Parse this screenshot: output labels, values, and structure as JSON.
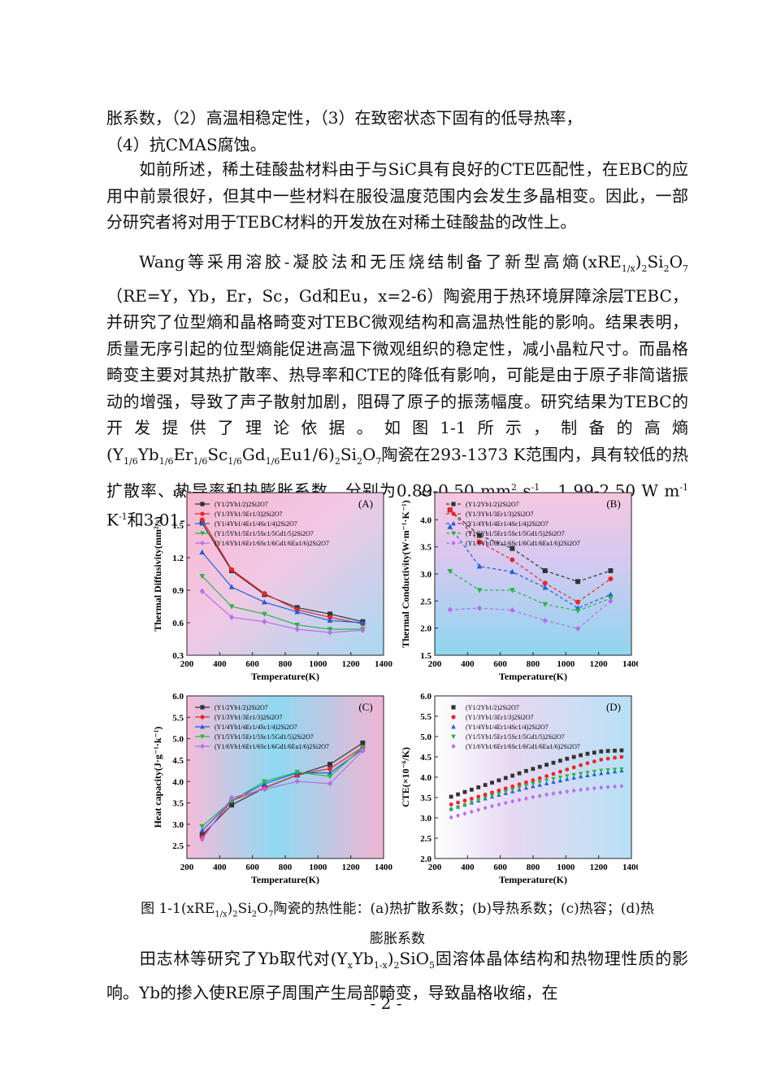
{
  "paragraphs": [
    "胀系数，（2）高温相稳定性，（3）在致密状态下固有的低导热率，（4）抗CMAS腐蚀。",
    "如前所述，稀土硅酸盐材料由于与SiC具有良好的CTE匹配性，在EBC的应用中前景很好，但其中一些材料在服役温度范围内会发生多晶相变。因此，一部分研究者将对用于TEBC材料的开发放在对稀土硅酸盐的改性上。",
    "Wang等采用溶胶-凝胶法和无压烧结制备了新型高熵(xRE1/x)2Si2O7（RE=Y，Yb，Er，Sc，Gd和Eu，x=2-6）陶瓷用于热环境屏障涂层TEBC，并研究了位型熵和晶格畸变对TEBC微观结构和高温热性能的影响。结果表明，质量无序引起的位型熵能促进高温下微观组织的稳定性，减小晶粒尺寸。而晶格畸变主要对其热扩散率、热导率和CTE的降低有影响，可能是由于原子非简谐振动的增强，导致了声子散射加剧，阻碍了原子的振荡幅度。研究结果为TEBC的开发提供了理论依据。如图1-1所示，制备的高熵(Y1/6Yb1/6Er1/6Sc1/6Gd1/6Eu1/6)2Si2O7陶瓷在293-1373 K范围内，具有较低的热扩散率、热导率和热膨胀系数，分别为0.89-0.50 mm2 s-1、1.99-2.50 W m-1 K-1和3.01-3.78×10-6 K-1。",
    "田志林等研究了Yb取代对(YxYb1-x)2SiO5固溶体晶体结构和热物理性质的影响。Yb的掺入使RE原子周围产生局部畸变，导致晶格收缩，在"
  ],
  "caption_line1": "图 1-1(xRE1/x)2Si2O7陶瓷的热性能：(a)热扩散系数；(b)导热系数；(c)热容；(d)热",
  "caption_line2": "膨胀系数",
  "page_number": "- 2 -",
  "legend_labels": [
    "(Y1/2Yb1/2)2Si2O7",
    "(Y1/3Yb1/3Er1/3)2Si2O7",
    "(Y1/4Yb1/4Er1/4Sc1/4)2Si2O7",
    "(Y1/5Yb1/5Er1/5Sc1/5Gd1/5)2Si2O7",
    "(Y1/6Yb1/6Er1/6Sc1/6Gd1/6Eu1/6)2Si2O7"
  ],
  "series_colors": [
    "#333333",
    "#e8262a",
    "#1f5fd6",
    "#2db24a",
    "#b66ee8"
  ],
  "chart_data": [
    {
      "type": "line",
      "panel": "(A)",
      "xlabel": "Temperature(K)",
      "ylabel": "Thermal Diffusivity(mm²/s)",
      "xlim": [
        200,
        1400
      ],
      "ylim": [
        0.3,
        1.8
      ],
      "xticks": [
        200,
        400,
        600,
        800,
        1000,
        1200,
        1400
      ],
      "yticks": [
        0.3,
        0.6,
        0.9,
        1.2,
        1.5,
        1.8
      ],
      "x": [
        293,
        473,
        673,
        873,
        1073,
        1273
      ],
      "series": [
        {
          "name": "(Y1/2Yb1/2)2Si2O7",
          "values": [
            1.52,
            1.08,
            0.86,
            0.74,
            0.68,
            0.61
          ]
        },
        {
          "name": "(Y1/3Yb1/3Er1/3)2Si2O7",
          "values": [
            1.55,
            1.09,
            0.87,
            0.72,
            0.65,
            0.59
          ]
        },
        {
          "name": "(Y1/4Yb1/4Er1/4Sc1/4)2Si2O7",
          "values": [
            1.25,
            0.93,
            0.79,
            0.7,
            0.62,
            0.6
          ]
        },
        {
          "name": "(Y1/5Yb1/5Er1/5Sc1/5Gd1/5)2Si2O7",
          "values": [
            1.03,
            0.75,
            0.68,
            0.58,
            0.54,
            0.54
          ]
        },
        {
          "name": "(Y1/6Yb1/6Er1/6Sc1/6Gd1/6Eu1/6)2Si2O7",
          "values": [
            0.89,
            0.65,
            0.61,
            0.54,
            0.51,
            0.53
          ]
        }
      ]
    },
    {
      "type": "line",
      "panel": "(B)",
      "xlabel": "Temperature(K)",
      "ylabel": "Thermal Conductivity(W·m⁻¹·K⁻¹)",
      "xlim": [
        200,
        1400
      ],
      "ylim": [
        1.5,
        4.5
      ],
      "xticks": [
        200,
        400,
        600,
        800,
        1000,
        1200,
        1400
      ],
      "yticks": [
        1.5,
        2.0,
        2.5,
        3.0,
        3.5,
        4.0,
        4.5
      ],
      "x": [
        293,
        473,
        673,
        873,
        1073,
        1273
      ],
      "series": [
        {
          "name": "(Y1/2Yb1/2)2Si2O7",
          "values": [
            4.18,
            3.71,
            3.47,
            3.06,
            2.86,
            3.06
          ]
        },
        {
          "name": "(Y1/3Yb1/3Er1/3)2Si2O7",
          "values": [
            4.18,
            3.59,
            3.26,
            2.83,
            2.48,
            2.91
          ]
        },
        {
          "name": "(Y1/4Yb1/4Er1/4Sc1/4)2Si2O7",
          "values": [
            3.87,
            3.14,
            3.04,
            2.75,
            2.37,
            2.62
          ]
        },
        {
          "name": "(Y1/5Yb1/5Er1/5Sc1/5Gd1/5)2Si2O7",
          "values": [
            3.05,
            2.7,
            2.7,
            2.44,
            2.32,
            2.55
          ]
        },
        {
          "name": "(Y1/6Yb1/6Er1/6Sc1/6Gd1/6Eu1/6)2Si2O7",
          "values": [
            2.34,
            2.37,
            2.33,
            2.14,
            1.99,
            2.5
          ]
        }
      ]
    },
    {
      "type": "line",
      "panel": "(C)",
      "xlabel": "Temperature(K)",
      "ylabel": "Heat capacity(J·g⁻¹·k⁻¹)",
      "xlim": [
        200,
        1400
      ],
      "ylim": [
        2.2,
        6.0
      ],
      "xticks": [
        200,
        400,
        600,
        800,
        1000,
        1200,
        1400
      ],
      "yticks": [
        2.5,
        3.0,
        3.5,
        4.0,
        4.5,
        5.0,
        5.5,
        6.0
      ],
      "x": [
        293,
        473,
        673,
        873,
        1073,
        1273
      ],
      "series": [
        {
          "name": "(Y1/2Yb1/2)2Si2O7",
          "values": [
            2.75,
            3.45,
            3.85,
            4.15,
            4.4,
            4.9
          ]
        },
        {
          "name": "(Y1/3Yb1/3Er1/3)2Si2O7",
          "values": [
            2.7,
            3.55,
            3.85,
            4.15,
            4.3,
            4.8
          ]
        },
        {
          "name": "(Y1/4Yb1/4Er1/4Sc1/4)2Si2O7",
          "values": [
            2.85,
            3.55,
            3.95,
            4.2,
            4.2,
            4.75
          ]
        },
        {
          "name": "(Y1/5Yb1/5Er1/5Sc1/5Gd1/5)2Si2O7",
          "values": [
            2.95,
            3.55,
            4.0,
            4.22,
            4.12,
            4.8
          ]
        },
        {
          "name": "(Y1/6Yb1/6Er1/6Sc1/6Gd1/6Eu1/6)2Si2O7",
          "values": [
            2.65,
            3.62,
            3.82,
            4.0,
            3.95,
            4.72
          ]
        }
      ]
    },
    {
      "type": "scatter",
      "panel": "(D)",
      "xlabel": "Temperature(K)",
      "ylabel": "CTE(×10⁻⁶/K)",
      "xlim": [
        200,
        1400
      ],
      "ylim": [
        2.0,
        6.0
      ],
      "xticks": [
        200,
        400,
        600,
        800,
        1000,
        1200,
        1400
      ],
      "yticks": [
        2.0,
        2.5,
        3.0,
        3.5,
        4.0,
        4.5,
        5.0,
        5.5,
        6.0
      ],
      "x_range": [
        300,
        1340
      ],
      "series": [
        {
          "name": "(Y1/2Yb1/2)2Si2O7",
          "values": [
            3.52,
            3.68,
            3.84,
            4.0,
            4.16,
            4.3,
            4.44,
            4.56,
            4.64,
            4.66
          ]
        },
        {
          "name": "(Y1/3Yb1/3Er1/3)2Si2O7",
          "values": [
            3.33,
            3.46,
            3.6,
            3.74,
            3.88,
            4.02,
            4.17,
            4.32,
            4.44,
            4.5
          ]
        },
        {
          "name": "(Y1/4Yb1/4Er1/4Sc1/4)2Si2O7",
          "values": [
            3.22,
            3.36,
            3.5,
            3.62,
            3.74,
            3.84,
            3.94,
            4.03,
            4.1,
            4.16
          ]
        },
        {
          "name": "(Y1/5Yb1/5Er1/5Sc1/5Gd1/5)2Si2O7",
          "values": [
            3.2,
            3.36,
            3.52,
            3.66,
            3.8,
            3.92,
            4.02,
            4.1,
            4.17,
            4.2
          ]
        },
        {
          "name": "(Y1/6Yb1/6Er1/6Sc1/6Gd1/6Eu1/6)2Si2O7",
          "values": [
            3.01,
            3.14,
            3.27,
            3.38,
            3.48,
            3.57,
            3.64,
            3.7,
            3.75,
            3.78
          ]
        }
      ]
    }
  ]
}
